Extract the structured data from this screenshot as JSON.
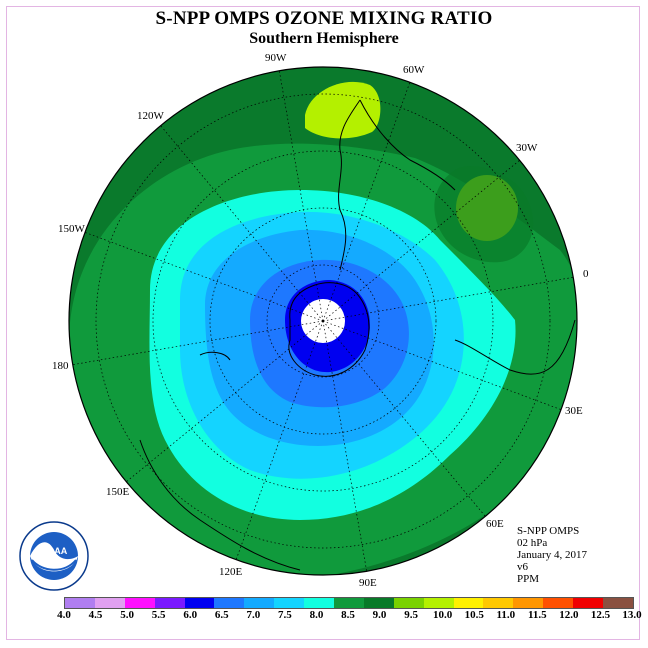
{
  "header": {
    "title": "S-NPP OMPS OZONE MIXING RATIO",
    "subtitle": "Southern Hemisphere"
  },
  "longitude_labels": {
    "l90w": "90W",
    "l60w": "60W",
    "l120w": "120W",
    "l30w": "30W",
    "l150w": "150W",
    "l0": "0",
    "l180": "180",
    "l30e": "30E",
    "l150e": "150E",
    "l60e": "60E",
    "l120e": "120E",
    "l90e": "90E"
  },
  "info": {
    "instrument": "S-NPP OMPS",
    "level": "02 hPa",
    "date": "January 4, 2017",
    "version": "v6",
    "units": "PPM"
  },
  "logo": {
    "text": "NOAA",
    "icon": "noaa-logo-icon"
  },
  "colorbar": {
    "labels": [
      "4.0",
      "4.5",
      "5.0",
      "5.5",
      "6.0",
      "6.5",
      "7.0",
      "7.5",
      "8.0",
      "8.5",
      "9.0",
      "9.5",
      "10.0",
      "10.5",
      "11.0",
      "11.5",
      "12.0",
      "12.5",
      "13.0"
    ],
    "colors": [
      "#b07ef0",
      "#e0a0f0",
      "#ff10ff",
      "#7a1aff",
      "#0000f0",
      "#1e78ff",
      "#14aaff",
      "#14d4ff",
      "#12ffe0",
      "#109a3c",
      "#087a28",
      "#7ad200",
      "#b4f000",
      "#fff000",
      "#ffc800",
      "#ff9600",
      "#ff5000",
      "#f00000",
      "#8a5040"
    ]
  }
}
